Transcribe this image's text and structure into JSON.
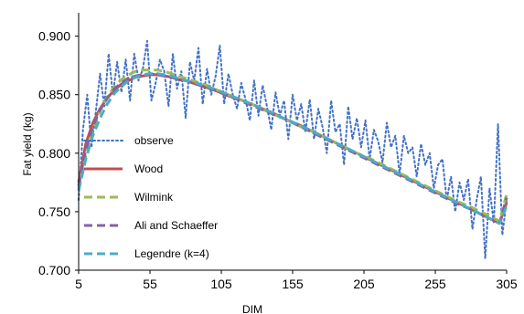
{
  "chart_data": {
    "type": "line",
    "title": "",
    "xlabel": "DIM",
    "ylabel": "Fat yield (kg)",
    "xlim": [
      5,
      305
    ],
    "ylim": [
      0.7,
      0.92
    ],
    "x_ticks": [
      5,
      55,
      105,
      155,
      205,
      255,
      305
    ],
    "x_tick_labels": [
      "5",
      "55",
      "105",
      "155",
      "205",
      "255",
      "305"
    ],
    "y_ticks": [
      0.7,
      0.75,
      0.8,
      0.85,
      0.9
    ],
    "y_tick_labels": [
      "0.700",
      "0.750",
      "0.800",
      "0.850",
      "0.900"
    ],
    "grid": false,
    "legend_position": "left",
    "series": [
      {
        "name": "observe",
        "color": "#4472C4",
        "style": "dotted",
        "x": [
          5,
          8,
          11,
          14,
          17,
          20,
          23,
          26,
          29,
          32,
          35,
          38,
          41,
          44,
          47,
          50,
          53,
          56,
          59,
          62,
          65,
          68,
          71,
          74,
          77,
          80,
          83,
          86,
          89,
          92,
          95,
          98,
          101,
          104,
          107,
          110,
          113,
          116,
          119,
          122,
          125,
          128,
          131,
          134,
          137,
          140,
          143,
          146,
          149,
          152,
          155,
          158,
          161,
          164,
          167,
          170,
          173,
          176,
          179,
          182,
          185,
          188,
          191,
          194,
          197,
          200,
          203,
          206,
          209,
          212,
          215,
          218,
          221,
          224,
          227,
          230,
          233,
          236,
          239,
          242,
          245,
          248,
          251,
          254,
          257,
          260,
          263,
          266,
          269,
          272,
          275,
          278,
          281,
          284,
          287,
          290,
          293,
          296,
          299,
          302,
          305
        ],
        "y": [
          0.76,
          0.82,
          0.85,
          0.805,
          0.835,
          0.868,
          0.84,
          0.885,
          0.85,
          0.878,
          0.852,
          0.88,
          0.845,
          0.885,
          0.862,
          0.872,
          0.896,
          0.845,
          0.86,
          0.88,
          0.87,
          0.84,
          0.885,
          0.855,
          0.87,
          0.83,
          0.878,
          0.862,
          0.89,
          0.842,
          0.872,
          0.85,
          0.866,
          0.892,
          0.842,
          0.868,
          0.85,
          0.838,
          0.86,
          0.846,
          0.828,
          0.862,
          0.832,
          0.858,
          0.84,
          0.82,
          0.852,
          0.832,
          0.845,
          0.812,
          0.85,
          0.828,
          0.842,
          0.818,
          0.846,
          0.812,
          0.838,
          0.822,
          0.8,
          0.845,
          0.818,
          0.825,
          0.79,
          0.84,
          0.812,
          0.83,
          0.805,
          0.828,
          0.795,
          0.82,
          0.81,
          0.792,
          0.826,
          0.805,
          0.815,
          0.782,
          0.815,
          0.8,
          0.805,
          0.78,
          0.808,
          0.79,
          0.8,
          0.77,
          0.79,
          0.795,
          0.76,
          0.78,
          0.75,
          0.775,
          0.76,
          0.778,
          0.735,
          0.76,
          0.78,
          0.71,
          0.77,
          0.74,
          0.825,
          0.73,
          0.76
        ]
      },
      {
        "name": "Wood",
        "color": "#C0504D",
        "style": "solid",
        "x": [
          5,
          10,
          15,
          20,
          25,
          30,
          35,
          40,
          45,
          50,
          55,
          60,
          65,
          70,
          75,
          80,
          85,
          90,
          95,
          100,
          110,
          120,
          130,
          140,
          150,
          160,
          170,
          180,
          190,
          200,
          210,
          220,
          230,
          240,
          250,
          260,
          270,
          280,
          290,
          300,
          305
        ],
        "y": [
          0.775,
          0.808,
          0.826,
          0.838,
          0.847,
          0.854,
          0.859,
          0.862,
          0.865,
          0.866,
          0.867,
          0.867,
          0.866,
          0.865,
          0.863,
          0.862,
          0.86,
          0.858,
          0.856,
          0.854,
          0.849,
          0.845,
          0.84,
          0.835,
          0.829,
          0.824,
          0.818,
          0.812,
          0.806,
          0.8,
          0.794,
          0.788,
          0.782,
          0.776,
          0.77,
          0.764,
          0.758,
          0.752,
          0.746,
          0.74,
          0.758
        ]
      },
      {
        "name": "Wilmink",
        "color": "#9BBB59",
        "style": "dashed",
        "x": [
          5,
          10,
          15,
          20,
          25,
          30,
          35,
          40,
          45,
          50,
          55,
          60,
          65,
          70,
          75,
          80,
          85,
          90,
          95,
          100,
          110,
          120,
          130,
          140,
          150,
          160,
          170,
          180,
          190,
          200,
          210,
          220,
          230,
          240,
          250,
          260,
          270,
          280,
          290,
          300,
          305
        ],
        "y": [
          0.77,
          0.798,
          0.82,
          0.836,
          0.848,
          0.857,
          0.863,
          0.867,
          0.87,
          0.871,
          0.871,
          0.871,
          0.87,
          0.868,
          0.866,
          0.864,
          0.862,
          0.86,
          0.858,
          0.855,
          0.85,
          0.845,
          0.84,
          0.834,
          0.829,
          0.823,
          0.818,
          0.812,
          0.806,
          0.8,
          0.795,
          0.789,
          0.783,
          0.777,
          0.771,
          0.765,
          0.759,
          0.754,
          0.748,
          0.742,
          0.765
        ]
      },
      {
        "name": "Ali and Schaeffer",
        "color": "#8064A2",
        "style": "dashed",
        "x": [
          5,
          10,
          15,
          20,
          25,
          30,
          35,
          40,
          45,
          50,
          55,
          60,
          65,
          70,
          75,
          80,
          85,
          90,
          95,
          100,
          110,
          120,
          130,
          140,
          150,
          160,
          170,
          180,
          190,
          200,
          210,
          220,
          230,
          240,
          250,
          260,
          270,
          280,
          290,
          300,
          305
        ],
        "y": [
          0.772,
          0.803,
          0.823,
          0.837,
          0.847,
          0.855,
          0.86,
          0.864,
          0.866,
          0.867,
          0.868,
          0.867,
          0.866,
          0.865,
          0.863,
          0.862,
          0.86,
          0.858,
          0.856,
          0.854,
          0.849,
          0.844,
          0.839,
          0.834,
          0.829,
          0.823,
          0.817,
          0.811,
          0.805,
          0.799,
          0.793,
          0.787,
          0.781,
          0.775,
          0.769,
          0.763,
          0.757,
          0.752,
          0.746,
          0.74,
          0.762
        ]
      },
      {
        "name": "Legendre (k=4)",
        "color": "#4BACC6",
        "style": "dashed",
        "x": [
          5,
          10,
          15,
          20,
          25,
          30,
          35,
          40,
          45,
          50,
          55,
          60,
          65,
          70,
          75,
          80,
          85,
          90,
          95,
          100,
          110,
          120,
          130,
          140,
          150,
          160,
          170,
          180,
          190,
          200,
          210,
          220,
          230,
          240,
          250,
          260,
          270,
          280,
          290,
          300,
          305
        ],
        "y": [
          0.768,
          0.795,
          0.815,
          0.83,
          0.842,
          0.851,
          0.857,
          0.862,
          0.865,
          0.867,
          0.868,
          0.868,
          0.867,
          0.866,
          0.864,
          0.862,
          0.861,
          0.859,
          0.857,
          0.855,
          0.85,
          0.845,
          0.84,
          0.835,
          0.829,
          0.824,
          0.818,
          0.812,
          0.806,
          0.8,
          0.794,
          0.788,
          0.782,
          0.776,
          0.77,
          0.764,
          0.758,
          0.752,
          0.746,
          0.74,
          0.755
        ]
      }
    ]
  }
}
